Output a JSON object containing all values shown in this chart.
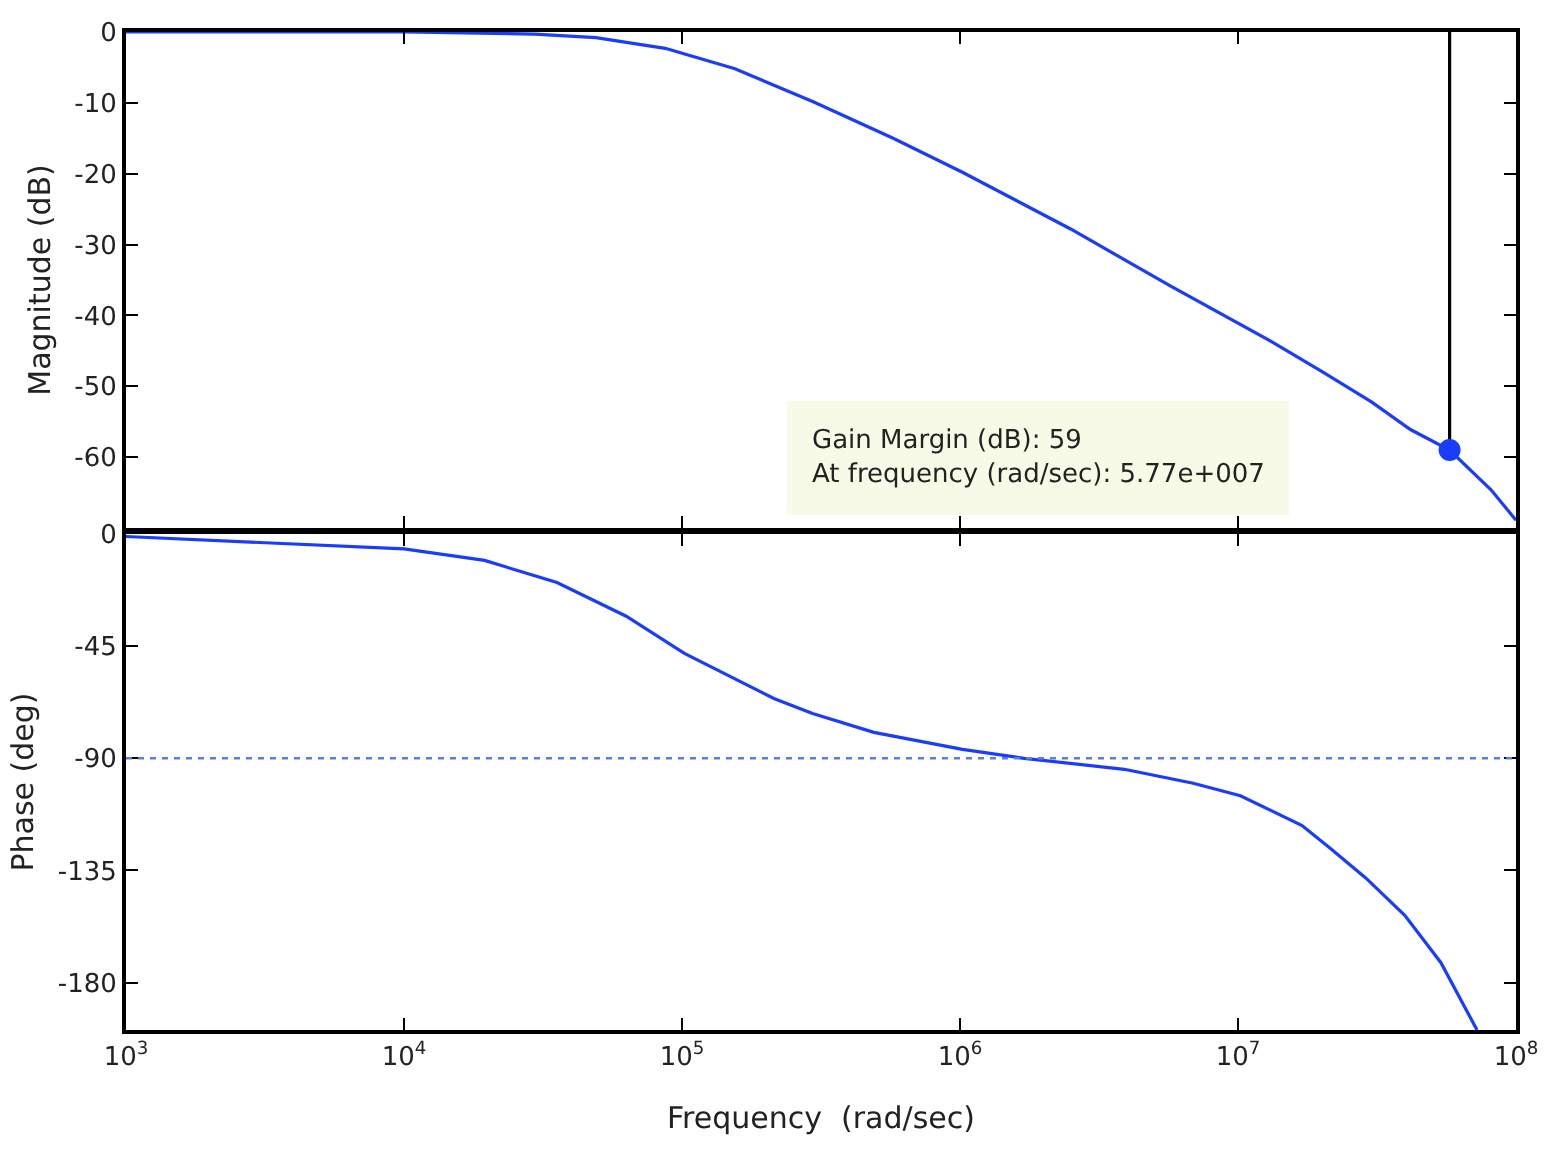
{
  "chart_data": [
    {
      "type": "line",
      "ylabel": "Magnitude (dB)",
      "log": "x",
      "tick_labels": "y",
      "xlim": [
        1000,
        100000000
      ],
      "xticks": [
        {
          "value": 1000,
          "label": null
        },
        {
          "value": 10000,
          "label": null
        },
        {
          "value": 100000,
          "label": null
        },
        {
          "value": 1000000,
          "label": null
        },
        {
          "value": 10000000,
          "label": null
        },
        {
          "value": 100000000,
          "label": null
        }
      ],
      "ylim": [
        -70,
        0
      ],
      "yticks": [
        0,
        -10,
        -20,
        -30,
        -40,
        -50,
        -60
      ],
      "series": [
        {
          "color": "#1a3cff",
          "marker": "none",
          "x": [
            1000,
            10000,
            29500,
            49000,
            87000,
            155000,
            295000,
            575000,
            1020000,
            2500000,
            5750000,
            13200000,
            20000000,
            30200000,
            41700000,
            57700000,
            81300000,
            100000000
          ],
          "values": [
            0,
            0,
            -0.3,
            -0.8,
            -2.3,
            -5.2,
            -9.8,
            -15,
            -19.8,
            -27.8,
            -35.9,
            -43.7,
            -47.9,
            -52.2,
            -56.1,
            -59,
            -64.6,
            -68.9
          ]
        },
        {
          "type": "line",
          "color": "#000000",
          "marker": "none",
          "x": [
            57700000,
            57700000
          ],
          "values": [
            -59,
            0
          ]
        },
        {
          "type": "scatter",
          "color": "#1a3cff",
          "marker": "circle",
          "x": [
            57700000
          ],
          "values": [
            -59
          ]
        }
      ],
      "annotations": [
        "Gain Margin (dB): 59\nAt frequency (rad/sec): 5.77e+007"
      ]
    },
    {
      "type": "line",
      "ylabel": "Phase (deg)",
      "xlabel": "Frequency  (rad/sec)",
      "log": "x",
      "xlim": [
        1000,
        100000000
      ],
      "xticks": [
        {
          "value": 1000,
          "label": "10$^{3}$"
        },
        {
          "value": 10000,
          "label": "10$^{4}$"
        },
        {
          "value": 100000,
          "label": "10$^{5}$"
        },
        {
          "value": 1000000,
          "label": "10$^{6}$"
        },
        {
          "value": 10000000,
          "label": "10$^{7}$"
        },
        {
          "value": 100000000,
          "label": "10$^{8}$"
        }
      ],
      "ylim": [
        -199,
        0
      ],
      "yticks": [
        0,
        -45,
        -90,
        -135,
        -180
      ],
      "series": [
        {
          "color": "#1a3cff",
          "marker": "none",
          "x": [
            1000,
            10000,
            19500,
            35500,
            63000,
            102000,
            214000,
            295000,
            490000,
            1020000,
            1700000,
            3900000,
            6900000,
            10200000,
            17000000,
            21400000,
            28800000,
            39800000,
            53700000,
            72400000
          ],
          "values": [
            -1,
            -6,
            -10.6,
            -19.5,
            -33,
            -47.9,
            -66,
            -72,
            -79.6,
            -86.4,
            -90,
            -94.4,
            -100,
            -105,
            -117,
            -126,
            -138,
            -153,
            -172,
            -199
          ]
        }
      ],
      "ref_lines": [
        {
          "axis": "y",
          "value": -90,
          "label": null,
          "color": "#5a7cf0",
          "line_style": "dotted"
        }
      ]
    }
  ]
}
